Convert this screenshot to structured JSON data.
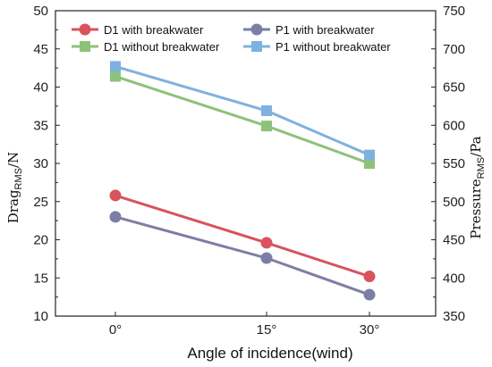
{
  "chart_data": {
    "type": "line",
    "xlabel": "Angle of incidence(wind)",
    "categories": [
      "0°",
      "15°",
      "30°"
    ],
    "y_left": {
      "label_main": "Drag",
      "label_sub": "RMS",
      "label_unit": "/N",
      "ylim": [
        10,
        50
      ],
      "ticks": [
        10,
        15,
        20,
        25,
        30,
        35,
        40,
        45,
        50
      ]
    },
    "y_right": {
      "label_main": "Pressure",
      "label_sub": "RMS",
      "label_unit": "/Pa",
      "ylim": [
        350,
        750
      ],
      "ticks": [
        350,
        400,
        450,
        500,
        550,
        600,
        650,
        700,
        750
      ]
    },
    "series": [
      {
        "name": "D1 with breakwater",
        "axis": "left",
        "marker": "circle",
        "color": "#d9525e",
        "values": [
          25.8,
          19.6,
          15.2
        ]
      },
      {
        "name": "P1 with breakwater",
        "axis": "right",
        "marker": "circle",
        "color": "#7d7ea6",
        "values": [
          480,
          426,
          378
        ]
      },
      {
        "name": "D1 without breakwater",
        "axis": "left",
        "marker": "square",
        "color": "#8dc27a",
        "values": [
          41.4,
          34.9,
          30.0
        ]
      },
      {
        "name": "P1 without breakwater",
        "axis": "right",
        "marker": "square",
        "color": "#7fb1e0",
        "values": [
          677,
          619,
          561
        ]
      }
    ],
    "legend_position": "top",
    "grid": false
  }
}
